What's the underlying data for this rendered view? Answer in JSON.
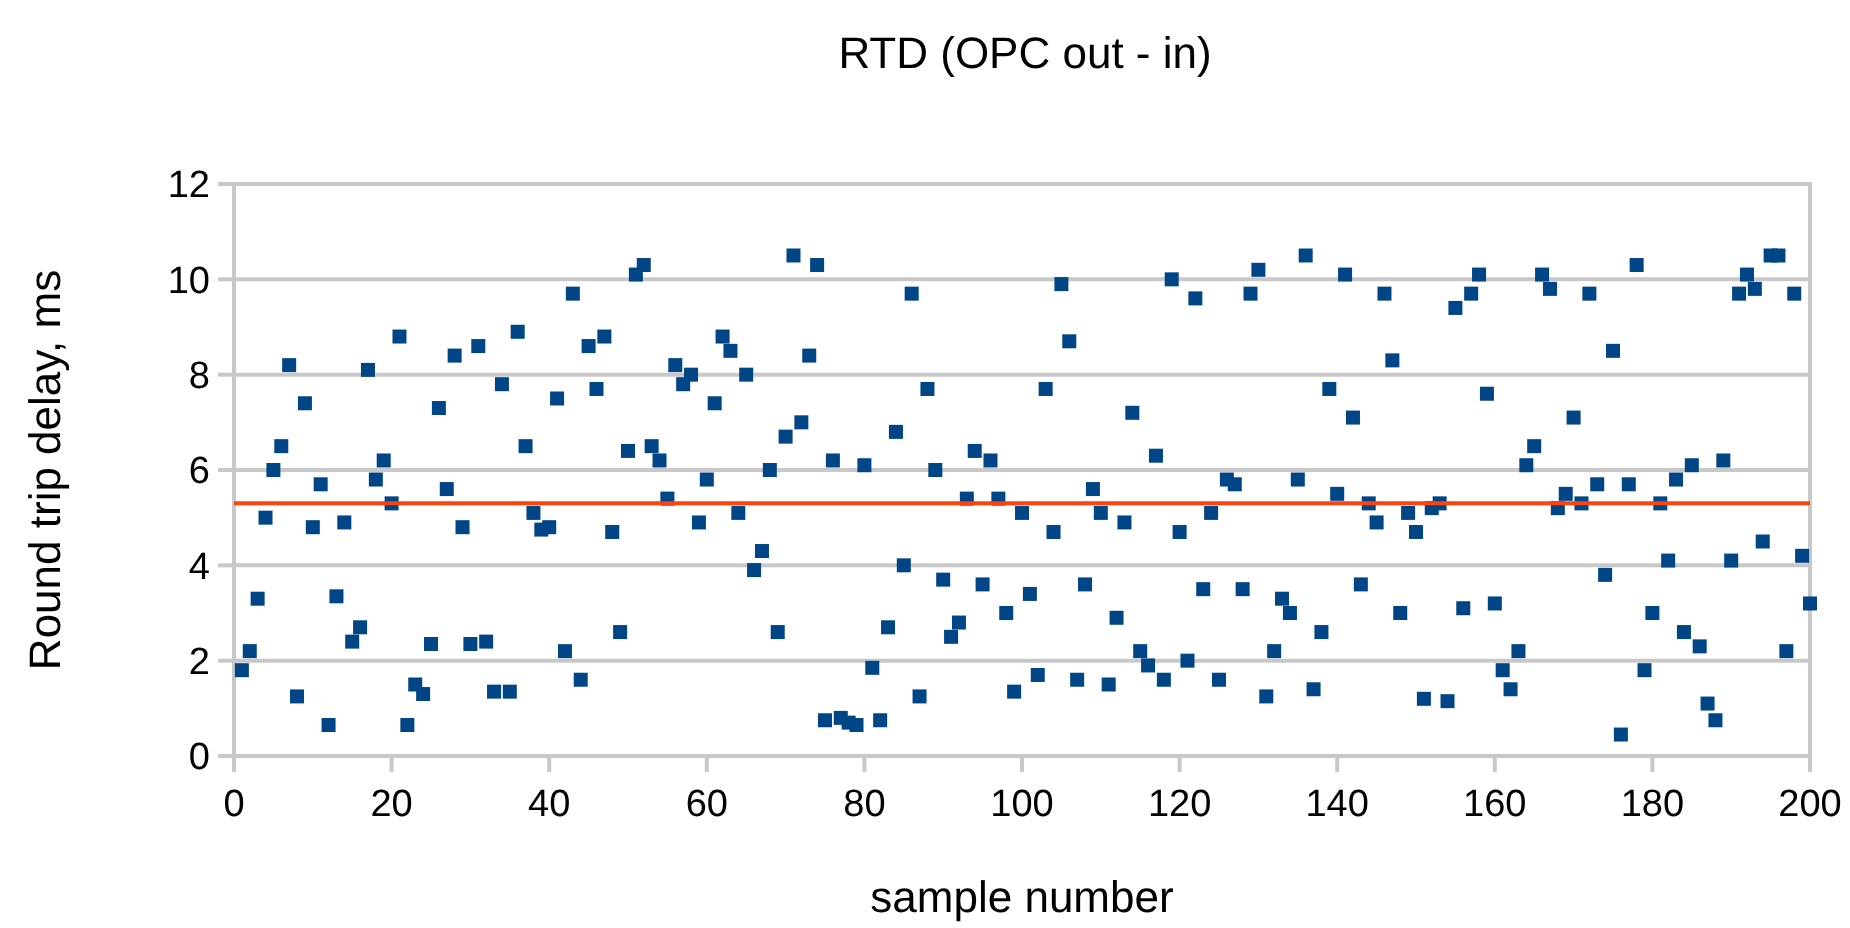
{
  "chart_data": {
    "type": "scatter",
    "title": "RTD (OPC out - in)",
    "xlabel": "sample number",
    "ylabel": "Round trip delay, ms",
    "xlim": [
      0,
      200
    ],
    "xticks": [
      0,
      20,
      40,
      60,
      80,
      100,
      120,
      140,
      160,
      180,
      200
    ],
    "ylim": [
      0,
      12
    ],
    "yticks": [
      0,
      2,
      4,
      6,
      8,
      10,
      12
    ],
    "grid": "y",
    "marker": "square",
    "ref_lines": [
      {
        "axis": "y",
        "value": 5.3,
        "color": "#ff420e"
      }
    ],
    "series": [
      {
        "color": "#004586",
        "x": [
          1,
          2,
          3,
          4,
          5,
          6,
          7,
          8,
          9,
          10,
          11,
          12,
          13,
          14,
          15,
          16,
          17,
          18,
          19,
          20,
          21,
          22,
          23,
          24,
          25,
          26,
          27,
          28,
          29,
          30,
          31,
          32,
          33,
          34,
          35,
          36,
          37,
          38,
          39,
          40,
          41,
          42,
          43,
          44,
          45,
          46,
          47,
          48,
          49,
          50,
          51,
          52,
          53,
          54,
          55,
          56,
          57,
          58,
          59,
          60,
          61,
          62,
          63,
          64,
          65,
          66,
          67,
          68,
          69,
          70,
          71,
          72,
          73,
          74,
          75,
          76,
          77,
          78,
          79,
          80,
          81,
          82,
          83,
          84,
          85,
          86,
          87,
          88,
          89,
          90,
          91,
          92,
          93,
          94,
          95,
          96,
          97,
          98,
          99,
          100,
          101,
          102,
          103,
          104,
          105,
          106,
          107,
          108,
          109,
          110,
          111,
          112,
          113,
          114,
          115,
          116,
          117,
          118,
          119,
          120,
          121,
          122,
          123,
          124,
          125,
          126,
          127,
          128,
          129,
          130,
          131,
          132,
          133,
          134,
          135,
          136,
          137,
          138,
          139,
          140,
          141,
          142,
          143,
          144,
          145,
          146,
          147,
          148,
          149,
          150,
          151,
          152,
          153,
          154,
          155,
          156,
          157,
          158,
          159,
          160,
          161,
          162,
          163,
          164,
          165,
          166,
          167,
          168,
          169,
          170,
          171,
          172,
          173,
          174,
          175,
          176,
          177,
          178,
          179,
          180,
          181,
          182,
          183,
          184,
          185,
          186,
          187,
          188,
          189,
          190,
          191,
          192,
          193,
          194,
          195,
          196,
          197,
          198,
          199,
          200
        ],
        "values": [
          1.8,
          2.2,
          3.3,
          5.0,
          6.0,
          6.5,
          8.2,
          1.25,
          7.4,
          4.8,
          5.7,
          0.65,
          3.35,
          4.9,
          2.4,
          2.7,
          8.1,
          5.8,
          6.2,
          5.3,
          8.8,
          0.65,
          1.5,
          1.3,
          2.35,
          7.3,
          5.6,
          8.4,
          4.8,
          2.35,
          8.6,
          2.4,
          1.35,
          7.8,
          1.35,
          8.9,
          6.5,
          5.1,
          4.75,
          4.8,
          7.5,
          2.2,
          9.7,
          1.6,
          8.6,
          7.7,
          8.8,
          4.7,
          2.6,
          6.4,
          10.1,
          10.3,
          6.5,
          6.2,
          5.4,
          8.2,
          7.8,
          8.0,
          4.9,
          5.8,
          7.4,
          8.8,
          8.5,
          5.1,
          8.0,
          3.9,
          4.3,
          6.0,
          2.6,
          6.7,
          10.5,
          7.0,
          8.4,
          10.3,
          0.75,
          6.2,
          0.8,
          0.7,
          0.65,
          6.1,
          1.85,
          0.75,
          2.7,
          6.8,
          4.0,
          9.7,
          1.25,
          7.7,
          6.0,
          3.7,
          2.5,
          2.8,
          5.4,
          6.4,
          3.6,
          6.2,
          5.4,
          3.0,
          1.35,
          5.1,
          3.4,
          1.7,
          7.7,
          4.7,
          9.9,
          8.7,
          1.6,
          3.6,
          5.6,
          5.1,
          1.5,
          2.9,
          4.9,
          7.2,
          2.2,
          1.9,
          6.3,
          1.6,
          10.0,
          4.7,
          2.0,
          9.6,
          3.5,
          5.1,
          1.6,
          5.8,
          5.7,
          3.5,
          9.7,
          10.2,
          1.25,
          2.2,
          3.3,
          3.0,
          5.8,
          10.5,
          1.4,
          2.6,
          7.7,
          5.5,
          10.1,
          7.1,
          3.6,
          5.3,
          4.9,
          9.7,
          8.3,
          3.0,
          5.1,
          4.7,
          1.2,
          5.2,
          5.3,
          1.15,
          9.4,
          3.1,
          9.7,
          10.1,
          7.6,
          3.2,
          1.8,
          1.4,
          2.2,
          6.1,
          6.5,
          10.1,
          9.8,
          5.2,
          5.5,
          7.1,
          5.3,
          9.7,
          5.7,
          3.8,
          8.5,
          0.45,
          5.7,
          10.3,
          1.8,
          3.0,
          5.3,
          4.1,
          5.8,
          2.6,
          6.1,
          2.3,
          1.1,
          0.75,
          6.2,
          4.1,
          9.7,
          10.1,
          9.8,
          4.5,
          10.5,
          10.5,
          2.2,
          9.7,
          4.2,
          3.2
        ]
      }
    ]
  }
}
